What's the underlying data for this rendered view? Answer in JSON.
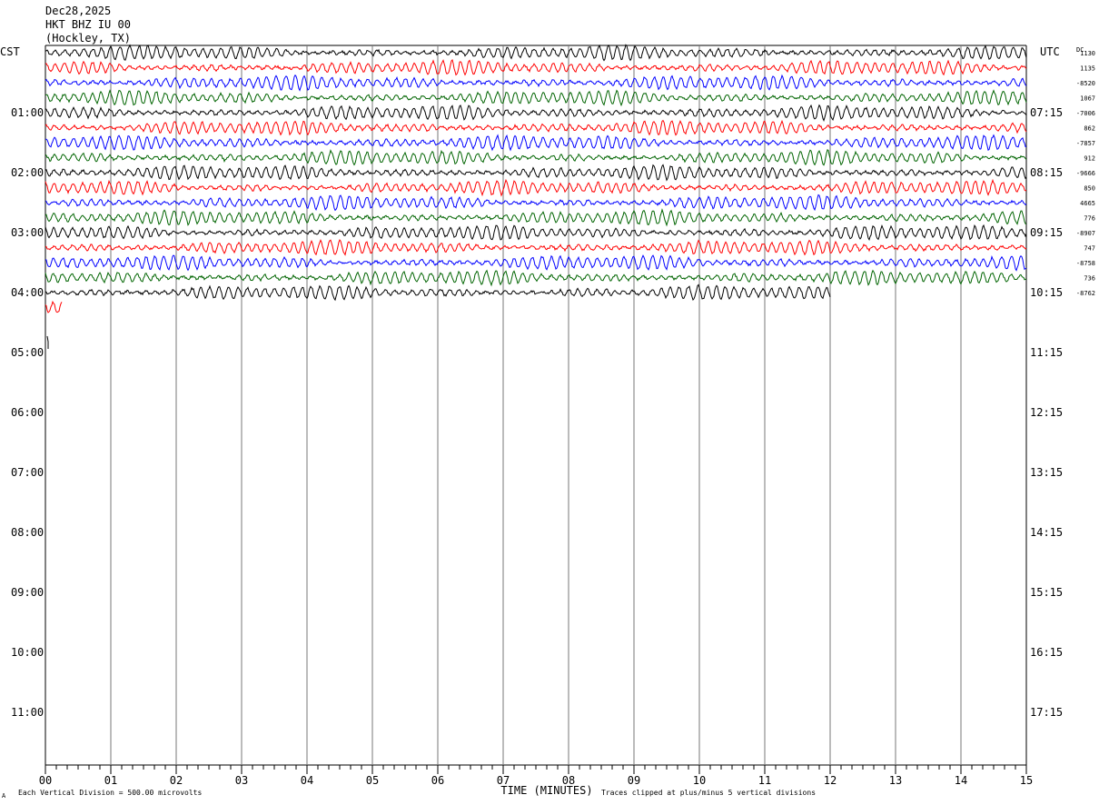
{
  "header": {
    "date": "Dec28,2025",
    "station": "HKT BHZ IU 00",
    "location": "(Hockley, TX)"
  },
  "chart_data": {
    "type": "line",
    "title": "Dec28,2025",
    "subtitle": "HKT BHZ IU 00",
    "left_axis_label": "CST",
    "right_axis_label": "UTC",
    "dc_label": "DC",
    "xlabel": "TIME (MINUTES)",
    "xlim": [
      0,
      15
    ],
    "x_ticks": [
      "00",
      "01",
      "02",
      "03",
      "04",
      "05",
      "06",
      "07",
      "08",
      "09",
      "10",
      "11",
      "12",
      "13",
      "14",
      "15"
    ],
    "left_hour_labels": [
      "01:00",
      "02:00",
      "03:00",
      "04:00",
      "05:00",
      "06:00",
      "07:00",
      "08:00",
      "09:00",
      "10:00",
      "11:00"
    ],
    "right_hour_labels": [
      "07:15",
      "08:15",
      "09:15",
      "10:15",
      "11:15",
      "12:15",
      "13:15",
      "14:15",
      "15:15",
      "16:15",
      "17:15"
    ],
    "trace_colors": [
      "#000000",
      "#ff0000",
      "#0000ff",
      "#006400"
    ],
    "dc_offsets": [
      "1130",
      "1135",
      "-8520",
      "1067",
      "-7006",
      "862",
      "-7857",
      "912",
      "-9666",
      "850",
      "4665",
      "776",
      "-8907",
      "747",
      "-8758",
      "736",
      "-8762"
    ],
    "footnote_left": "Each Vertical Division =  500.00 microvolts",
    "footnote_right": "Traces clipped at plus/minus 5 vertical divisions",
    "corner_mark": "A",
    "rows_recorded": 17,
    "last_row_minutes": 0.25,
    "row_minutes": 15,
    "rows_per_hour": 4
  }
}
